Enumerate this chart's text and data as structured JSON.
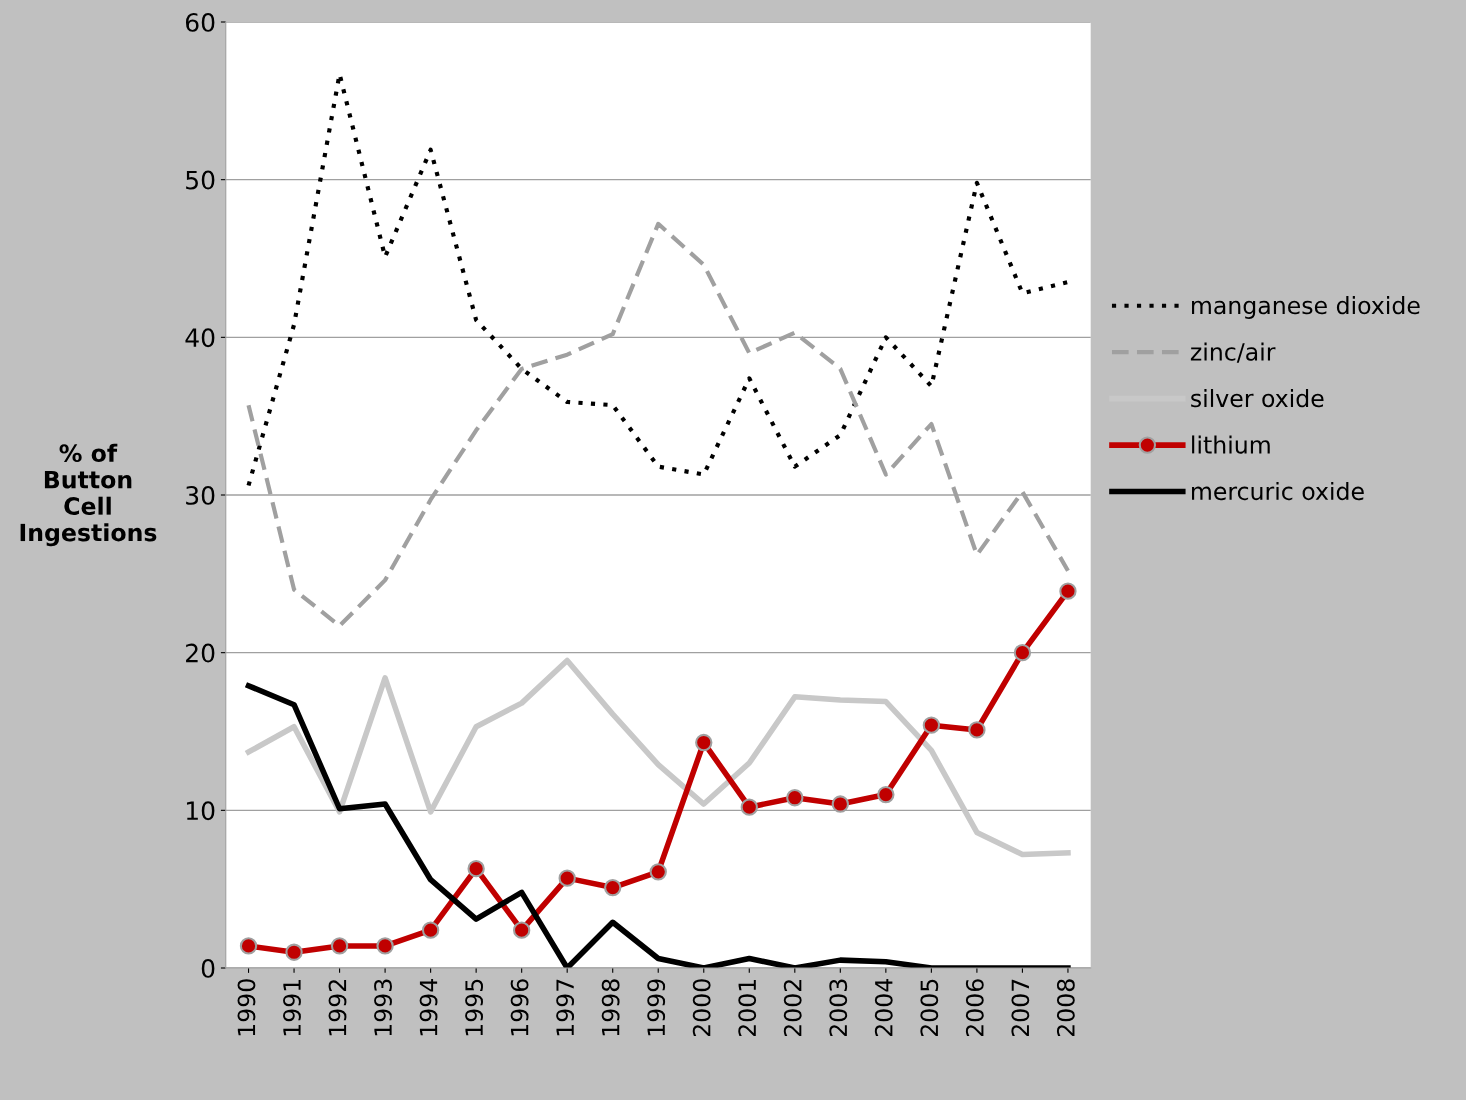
{
  "chart_data": {
    "type": "line",
    "ylabel": "% of\nButton\nCell\nIngestions",
    "categories": [
      "1990",
      "1991",
      "1992",
      "1993",
      "1994",
      "1995",
      "1996",
      "1997",
      "1998",
      "1999",
      "2000",
      "2001",
      "2002",
      "2003",
      "2004",
      "2005",
      "2006",
      "2007",
      "2008"
    ],
    "series": [
      {
        "name": "manganese dioxide",
        "color": "#000000",
        "line_style": "dotted",
        "marker": "none",
        "values": [
          30.6,
          40.8,
          56.7,
          45.1,
          51.9,
          41.1,
          38,
          35.9,
          35.7,
          31.8,
          31.3,
          37.4,
          31.8,
          33.8,
          40,
          36.9,
          49.8,
          42.8,
          43.5
        ]
      },
      {
        "name": "zinc/air",
        "color": "#a0a0a0",
        "line_style": "dashed",
        "marker": "none",
        "values": [
          35.7,
          24,
          21.7,
          24.6,
          29.7,
          34.1,
          38,
          38.9,
          40.2,
          47.2,
          44.6,
          39,
          40.3,
          38,
          31.3,
          34.5,
          26.2,
          30.2,
          25.2
        ]
      },
      {
        "name": "silver oxide",
        "color": "#c8c8c8",
        "line_style": "solid",
        "marker": "none",
        "values": [
          13.7,
          15.3,
          9.9,
          18.4,
          9.9,
          15.3,
          16.8,
          19.5,
          16.1,
          12.9,
          10.4,
          13,
          17.2,
          17,
          16.9,
          13.8,
          8.6,
          7.2,
          7.3
        ]
      },
      {
        "name": "lithium",
        "color": "#c00000",
        "line_style": "solid",
        "marker": "circle",
        "values": [
          1.4,
          1,
          1.4,
          1.4,
          2.4,
          6.3,
          2.4,
          5.7,
          5.1,
          6.1,
          14.3,
          10.2,
          10.8,
          10.4,
          11,
          15.4,
          15.1,
          20,
          23.9
        ]
      },
      {
        "name": "mercuric oxide",
        "color": "#000000",
        "line_style": "solid",
        "marker": "none",
        "values": [
          17.9,
          16.7,
          10.1,
          10.4,
          5.6,
          3.1,
          4.8,
          0,
          2.9,
          0.6,
          0,
          0.6,
          0,
          0.5,
          0.4,
          0,
          0,
          0,
          0
        ]
      }
    ],
    "ylim": [
      0,
      60
    ],
    "yticks": [
      0,
      10,
      20,
      30,
      40,
      50,
      60
    ],
    "grid": "y",
    "legend": "right"
  }
}
